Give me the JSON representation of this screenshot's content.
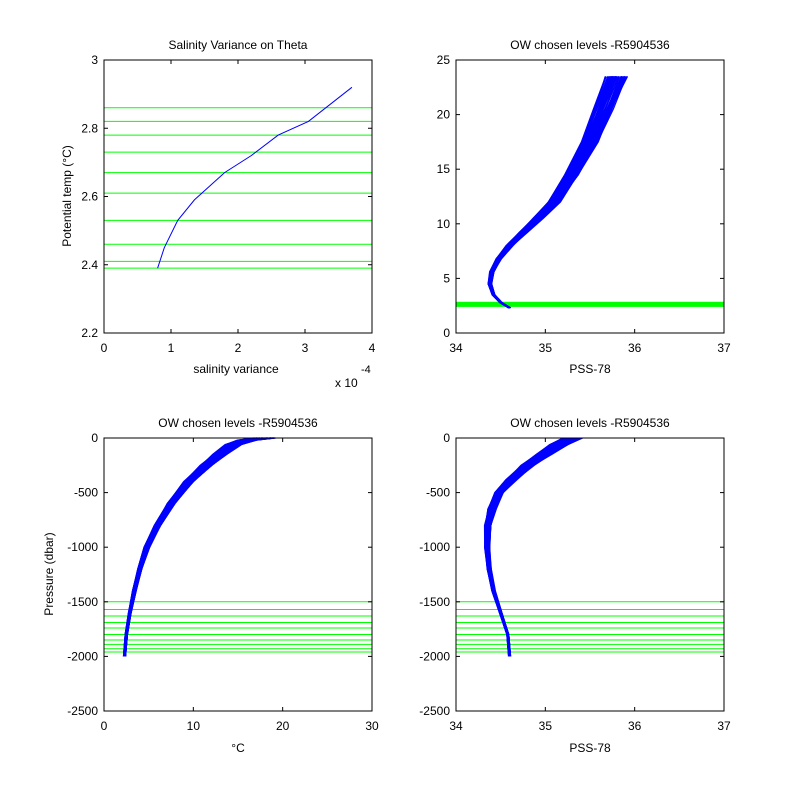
{
  "colors": {
    "profile": "#0000ff",
    "level": "#00ff00",
    "axis": "#000000",
    "background": "#ffffff"
  },
  "chart_data": [
    {
      "type": "line",
      "title": "Salinity Variance on Theta",
      "xlabel": "salinity variance",
      "x_exponent_base": "x 10",
      "x_exponent_power": "-4",
      "ylabel": "Potential temp (°C)",
      "xlim": [
        0,
        4
      ],
      "ylim": [
        2.2,
        3
      ],
      "xticks": [
        0,
        1,
        2,
        3,
        4
      ],
      "yticks": [
        2.2,
        2.4,
        2.6,
        2.8,
        3
      ],
      "grid": false,
      "series": [
        {
          "x": [
            0.8,
            0.9,
            1.1,
            1.35,
            1.8,
            2.2,
            2.6,
            3.05,
            3.7
          ],
          "y": [
            2.39,
            2.45,
            2.53,
            2.59,
            2.67,
            2.72,
            2.78,
            2.82,
            2.92
          ]
        }
      ],
      "levels": [
        2.39,
        2.41,
        2.46,
        2.53,
        2.61,
        2.67,
        2.73,
        2.78,
        2.82,
        2.86
      ]
    },
    {
      "type": "line",
      "title": "OW chosen levels -R5904536",
      "xlabel": "PSS-78",
      "ylabel": "",
      "xlim": [
        34,
        37
      ],
      "ylim": [
        0,
        25
      ],
      "xticks": [
        34,
        35,
        36,
        37
      ],
      "yticks": [
        0,
        5,
        10,
        15,
        20,
        25
      ],
      "grid": false,
      "profile_shape": {
        "x": [
          34.6,
          34.5,
          34.42,
          34.38,
          34.4,
          34.48,
          34.6,
          34.75,
          34.92,
          35.1,
          35.3,
          35.5,
          35.65,
          35.8
        ],
        "y": [
          2.3,
          2.8,
          3.5,
          4.5,
          5.6,
          6.8,
          8.0,
          9.2,
          10.5,
          12.0,
          14.5,
          17.5,
          20.5,
          23.5
        ]
      },
      "theta_band": [
        2.39,
        2.86
      ]
    },
    {
      "type": "line",
      "title": "OW chosen levels -R5904536",
      "xlabel": "°C",
      "ylabel": "Pressure (dbar)",
      "xlim": [
        0,
        30
      ],
      "ylim": [
        -2500,
        0
      ],
      "xticks": [
        0,
        10,
        20,
        30
      ],
      "yticks": [
        0,
        -500,
        -1000,
        -1500,
        -2000,
        -2500
      ],
      "grid": false,
      "profile_shape": {
        "x": [
          2.3,
          2.5,
          2.9,
          3.4,
          4.0,
          4.8,
          6.0,
          7.5,
          9.5,
          11.5,
          13.0,
          14.5,
          16.0,
          18.0
        ],
        "y": [
          -2000,
          -1800,
          -1600,
          -1400,
          -1200,
          -1000,
          -800,
          -600,
          -400,
          -250,
          -150,
          -60,
          -20,
          0
        ]
      },
      "levels": [
        -1500,
        -1570,
        -1630,
        -1690,
        -1740,
        -1800,
        -1850,
        -1890,
        -1930,
        -1960
      ]
    },
    {
      "type": "line",
      "title": "OW chosen levels -R5904536",
      "xlabel": "PSS-78",
      "ylabel": "",
      "xlim": [
        34,
        37
      ],
      "ylim": [
        -2500,
        0
      ],
      "xticks": [
        34,
        35,
        36,
        37
      ],
      "yticks": [
        0,
        -500,
        -1000,
        -1500,
        -2000,
        -2500
      ],
      "grid": false,
      "profile_shape": {
        "x": [
          34.6,
          34.58,
          34.5,
          34.42,
          34.37,
          34.35,
          34.36,
          34.4,
          34.48,
          34.62,
          34.8,
          34.98,
          35.15,
          35.3
        ],
        "y": [
          -2000,
          -1800,
          -1600,
          -1400,
          -1200,
          -1000,
          -800,
          -650,
          -500,
          -380,
          -250,
          -150,
          -60,
          0
        ]
      },
      "levels": [
        -1500,
        -1570,
        -1630,
        -1690,
        -1740,
        -1800,
        -1850,
        -1890,
        -1930,
        -1960
      ]
    }
  ]
}
